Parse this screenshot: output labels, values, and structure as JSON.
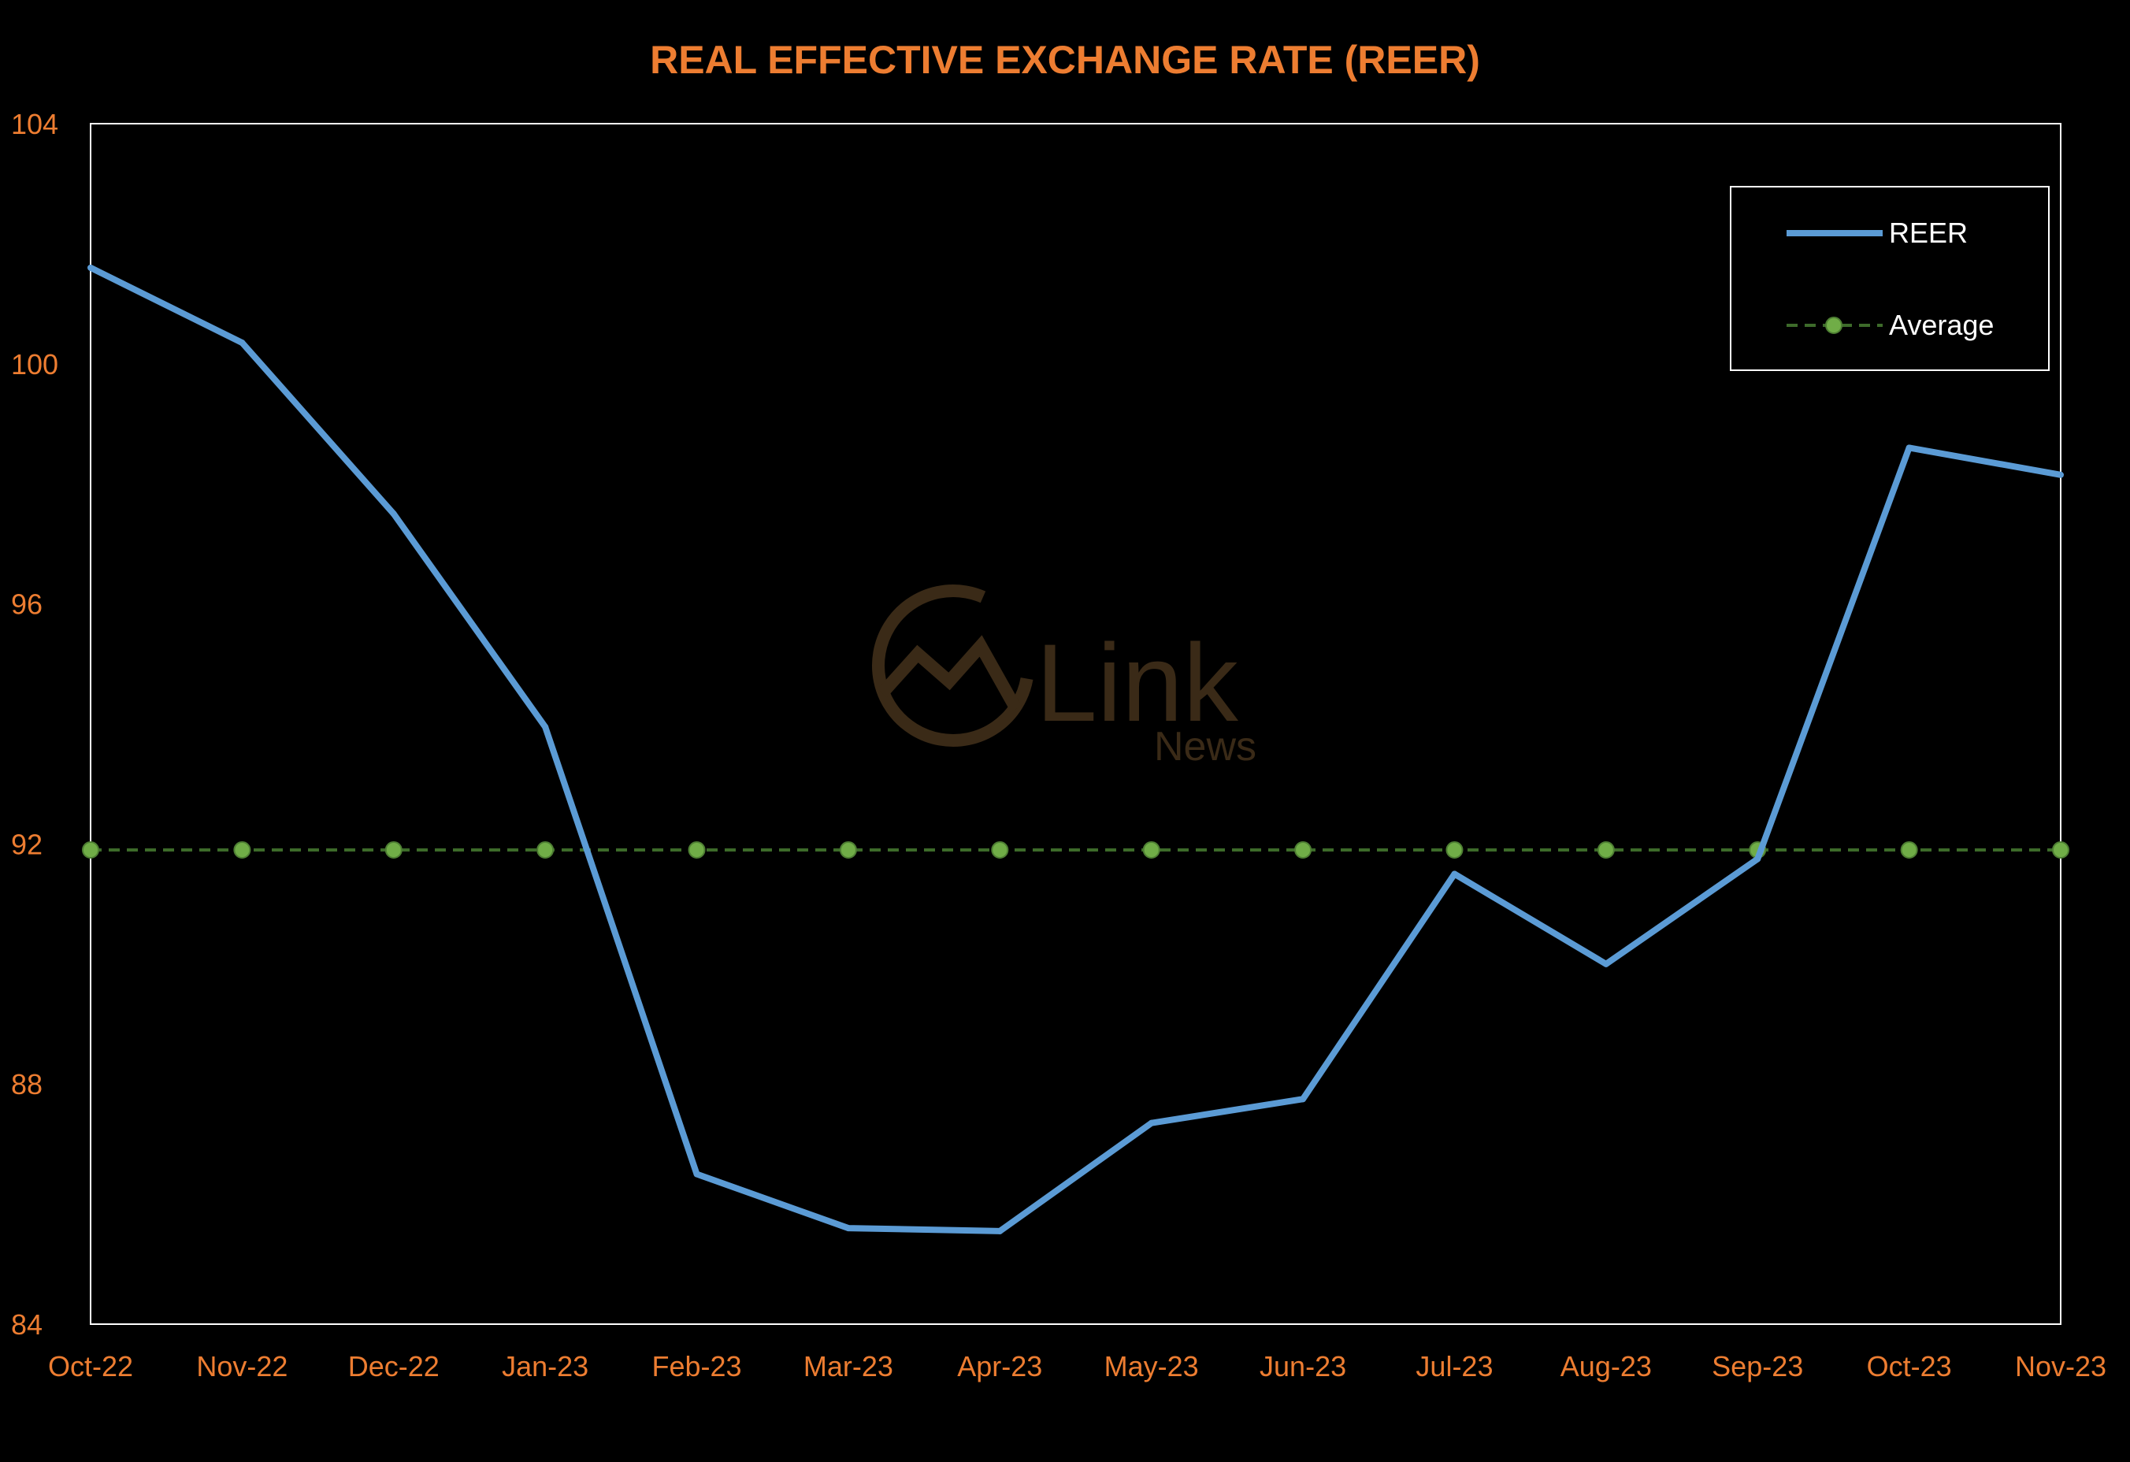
{
  "chart_data": {
    "type": "line",
    "title": "REAL EFFECTIVE EXCHANGE RATE (REER)",
    "xlabel": "",
    "ylabel": "",
    "categories": [
      "Oct-22",
      "Nov-22",
      "Dec-22",
      "Jan-23",
      "Feb-23",
      "Mar-23",
      "Apr-23",
      "May-23",
      "Jun-23",
      "Jul-23",
      "Aug-23",
      "Sep-23",
      "Oct-23",
      "Nov-23"
    ],
    "ylim": [
      84,
      104
    ],
    "yticks": [
      84,
      88,
      92,
      96,
      100,
      104
    ],
    "grid": false,
    "legend_position": "top-right",
    "series": [
      {
        "name": "REER",
        "color": "#5b9bd5",
        "style": "solid",
        "values": [
          101.6,
          100.35,
          97.5,
          93.95,
          86.5,
          85.6,
          85.55,
          87.35,
          87.75,
          91.5,
          90.0,
          91.75,
          98.6,
          98.15
        ]
      },
      {
        "name": "Average",
        "color": "#70ad47",
        "style": "dashed-markers",
        "values": [
          91.9,
          91.9,
          91.9,
          91.9,
          91.9,
          91.9,
          91.9,
          91.9,
          91.9,
          91.9,
          91.9,
          91.9,
          91.9,
          91.9
        ]
      }
    ]
  },
  "watermark": {
    "brand": "Link",
    "sub": "News",
    "color": "#3a2a17"
  },
  "colors": {
    "background": "#000000",
    "axis_text": "#ed7d31",
    "title": "#ed7d31",
    "frame": "#ffffff"
  }
}
